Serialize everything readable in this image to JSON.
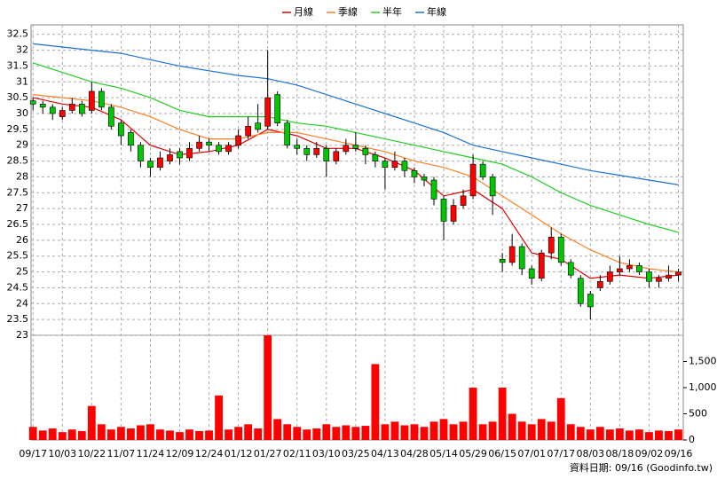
{
  "chart_data": {
    "type": "candlestick",
    "series": [
      {
        "name": "月線",
        "color": "#e00000",
        "x": [
          0,
          3,
          6,
          9,
          12,
          15,
          18,
          21,
          24,
          27,
          30,
          33,
          36,
          39,
          42,
          45,
          48,
          51,
          54,
          57,
          60,
          63,
          66
        ],
        "values": [
          30.5,
          30.3,
          30.2,
          29.8,
          29.0,
          28.7,
          28.8,
          29.0,
          29.5,
          29.3,
          28.9,
          28.9,
          28.6,
          28.2,
          27.4,
          27.6,
          27.0,
          25.6,
          25.4,
          24.8,
          24.9,
          24.8,
          24.9
        ]
      },
      {
        "name": "季線",
        "color": "#ff7f27",
        "x": [
          0,
          3,
          6,
          9,
          12,
          15,
          18,
          21,
          24,
          27,
          30,
          33,
          36,
          39,
          42,
          45,
          48,
          51,
          54,
          57,
          60,
          63,
          66
        ],
        "values": [
          30.6,
          30.5,
          30.4,
          30.2,
          29.9,
          29.5,
          29.2,
          29.2,
          29.4,
          29.4,
          29.2,
          29.0,
          28.8,
          28.5,
          28.3,
          28.0,
          27.4,
          26.8,
          26.2,
          25.7,
          25.3,
          25.1,
          25.0
        ]
      },
      {
        "name": "半年",
        "color": "#22cc22",
        "x": [
          0,
          3,
          6,
          9,
          12,
          15,
          18,
          21,
          24,
          27,
          30,
          33,
          36,
          39,
          42,
          45,
          48,
          51,
          54,
          57,
          60,
          63,
          66
        ],
        "values": [
          31.6,
          31.3,
          31.0,
          30.8,
          30.5,
          30.1,
          29.9,
          29.9,
          29.9,
          29.7,
          29.6,
          29.4,
          29.2,
          29.0,
          28.8,
          28.6,
          28.4,
          28.0,
          27.5,
          27.1,
          26.8,
          26.5,
          26.25
        ]
      },
      {
        "name": "年線",
        "color": "#1a6fd8",
        "x": [
          0,
          3,
          6,
          9,
          12,
          15,
          18,
          21,
          24,
          27,
          30,
          33,
          36,
          39,
          42,
          45,
          48,
          51,
          54,
          57,
          60,
          63,
          66
        ],
        "values": [
          32.2,
          32.1,
          32.0,
          31.9,
          31.7,
          31.5,
          31.35,
          31.2,
          31.1,
          30.9,
          30.6,
          30.3,
          30.0,
          29.7,
          29.4,
          29.0,
          28.8,
          28.6,
          28.4,
          28.2,
          28.05,
          27.9,
          27.75
        ]
      }
    ],
    "ohlc": [
      [
        30.4,
        30.5,
        30.1,
        30.3
      ],
      [
        30.3,
        30.4,
        30.0,
        30.2
      ],
      [
        30.2,
        30.3,
        29.8,
        30.0
      ],
      [
        29.9,
        30.2,
        29.8,
        30.1
      ],
      [
        30.1,
        30.5,
        30.0,
        30.3
      ],
      [
        30.3,
        30.4,
        29.9,
        30.0
      ],
      [
        30.1,
        31.0,
        30.0,
        30.7
      ],
      [
        30.7,
        30.8,
        30.1,
        30.2
      ],
      [
        30.2,
        30.3,
        29.5,
        29.6
      ],
      [
        29.7,
        29.8,
        29.0,
        29.3
      ],
      [
        29.4,
        29.5,
        28.8,
        29.0
      ],
      [
        29.0,
        29.1,
        28.3,
        28.5
      ],
      [
        28.5,
        28.6,
        28.0,
        28.3
      ],
      [
        28.3,
        28.8,
        28.2,
        28.6
      ],
      [
        28.5,
        28.9,
        28.4,
        28.7
      ],
      [
        28.8,
        28.9,
        28.4,
        28.6
      ],
      [
        28.6,
        29.1,
        28.5,
        28.9
      ],
      [
        28.9,
        29.3,
        28.8,
        29.1
      ],
      [
        29.1,
        29.2,
        28.8,
        29.0
      ],
      [
        29.0,
        29.1,
        28.7,
        28.8
      ],
      [
        28.8,
        29.1,
        28.7,
        29.0
      ],
      [
        29.0,
        29.5,
        28.9,
        29.3
      ],
      [
        29.3,
        29.9,
        29.2,
        29.6
      ],
      [
        29.7,
        30.3,
        29.4,
        29.5
      ],
      [
        29.6,
        32.0,
        29.5,
        30.5
      ],
      [
        30.6,
        30.7,
        29.6,
        29.7
      ],
      [
        29.7,
        29.8,
        28.9,
        29.0
      ],
      [
        29.0,
        29.2,
        28.7,
        28.9
      ],
      [
        28.9,
        29.0,
        28.5,
        28.7
      ],
      [
        28.7,
        29.1,
        28.6,
        28.9
      ],
      [
        28.9,
        29.0,
        28.0,
        28.5
      ],
      [
        28.5,
        28.9,
        28.4,
        28.8
      ],
      [
        28.8,
        29.2,
        28.7,
        29.0
      ],
      [
        29.0,
        29.4,
        28.8,
        28.9
      ],
      [
        28.9,
        29.0,
        28.4,
        28.7
      ],
      [
        28.7,
        28.8,
        28.3,
        28.5
      ],
      [
        28.5,
        28.6,
        27.6,
        28.3
      ],
      [
        28.3,
        28.8,
        28.2,
        28.5
      ],
      [
        28.5,
        28.6,
        28.0,
        28.2
      ],
      [
        28.2,
        28.3,
        27.8,
        28.0
      ],
      [
        28.0,
        28.1,
        27.7,
        27.9
      ],
      [
        27.9,
        28.0,
        27.1,
        27.3
      ],
      [
        27.3,
        27.4,
        26.0,
        26.6
      ],
      [
        26.6,
        27.3,
        26.5,
        27.1
      ],
      [
        27.1,
        27.6,
        27.0,
        27.4
      ],
      [
        27.4,
        28.7,
        27.3,
        28.4
      ],
      [
        28.4,
        28.5,
        27.9,
        28.0
      ],
      [
        28.0,
        28.1,
        26.8,
        27.4
      ],
      [
        25.4,
        25.6,
        25.0,
        25.3
      ],
      [
        25.3,
        26.2,
        25.2,
        25.8
      ],
      [
        25.8,
        25.9,
        24.9,
        25.1
      ],
      [
        25.1,
        25.2,
        24.6,
        24.8
      ],
      [
        24.8,
        25.7,
        24.7,
        25.6
      ],
      [
        25.6,
        26.4,
        25.4,
        26.1
      ],
      [
        26.1,
        26.2,
        25.2,
        25.3
      ],
      [
        25.3,
        25.4,
        24.8,
        24.9
      ],
      [
        24.8,
        24.9,
        23.9,
        24.0
      ],
      [
        24.3,
        24.4,
        23.5,
        23.9
      ],
      [
        24.5,
        24.9,
        24.4,
        24.7
      ],
      [
        24.7,
        25.2,
        24.6,
        25.0
      ],
      [
        25.0,
        25.5,
        24.9,
        25.1
      ],
      [
        25.1,
        25.4,
        25.0,
        25.2
      ],
      [
        25.2,
        25.3,
        24.9,
        25.0
      ],
      [
        25.0,
        25.1,
        24.5,
        24.7
      ],
      [
        24.7,
        24.9,
        24.5,
        24.8
      ],
      [
        24.8,
        25.2,
        24.7,
        24.9
      ],
      [
        24.9,
        25.1,
        24.7,
        25.0
      ]
    ],
    "up_color": "#ff0000",
    "down_color": "#00c800",
    "xlim": [
      -0.2,
      66.5
    ],
    "xticks": [
      {
        "value": 0,
        "label": "09/17"
      },
      {
        "value": 3,
        "label": "10/03"
      },
      {
        "value": 6,
        "label": "10/22"
      },
      {
        "value": 9,
        "label": "11/07"
      },
      {
        "value": 12,
        "label": "11/24"
      },
      {
        "value": 15,
        "label": "12/09"
      },
      {
        "value": 18,
        "label": "12/24"
      },
      {
        "value": 21,
        "label": "01/12"
      },
      {
        "value": 24,
        "label": "01/27"
      },
      {
        "value": 27,
        "label": "02/11"
      },
      {
        "value": 30,
        "label": "03/10"
      },
      {
        "value": 33,
        "label": "03/25"
      },
      {
        "value": 36,
        "label": "04/13"
      },
      {
        "value": 39,
        "label": "04/28"
      },
      {
        "value": 42,
        "label": "05/14"
      },
      {
        "value": 45,
        "label": "05/29"
      },
      {
        "value": 48,
        "label": "06/15"
      },
      {
        "value": 51,
        "label": "07/01"
      },
      {
        "value": 54,
        "label": "07/17"
      },
      {
        "value": 57,
        "label": "08/03"
      },
      {
        "value": 60,
        "label": "08/18"
      },
      {
        "value": 63,
        "label": "09/02"
      },
      {
        "value": 66,
        "label": "09/16"
      }
    ],
    "ylim": [
      23,
      32.8
    ],
    "yticks": [
      23,
      23.5,
      24,
      24.5,
      25,
      25.5,
      26,
      26.5,
      27,
      27.5,
      28,
      28.5,
      29,
      29.5,
      30,
      30.5,
      31,
      31.5,
      32,
      32.5
    ],
    "grid": true,
    "volume": {
      "color": "#ff0000",
      "ylim": [
        0,
        2000
      ],
      "yticks": [
        0,
        500,
        {
          "value": 1000,
          "label": "1,000"
        },
        {
          "value": 1500,
          "label": "1,500"
        }
      ],
      "values": [
        250,
        180,
        220,
        150,
        200,
        170,
        650,
        300,
        200,
        250,
        220,
        280,
        300,
        200,
        180,
        150,
        200,
        170,
        180,
        850,
        200,
        250,
        300,
        220,
        2000,
        400,
        300,
        250,
        200,
        220,
        300,
        250,
        280,
        250,
        270,
        1450,
        300,
        350,
        280,
        300,
        250,
        350,
        400,
        300,
        350,
        1000,
        300,
        350,
        1000,
        500,
        350,
        300,
        400,
        350,
        800,
        300,
        250,
        200,
        250,
        200,
        220,
        180,
        200,
        150,
        180,
        170,
        200
      ]
    },
    "source": "資料日期: 09/16 (Goodinfo.tw)"
  }
}
